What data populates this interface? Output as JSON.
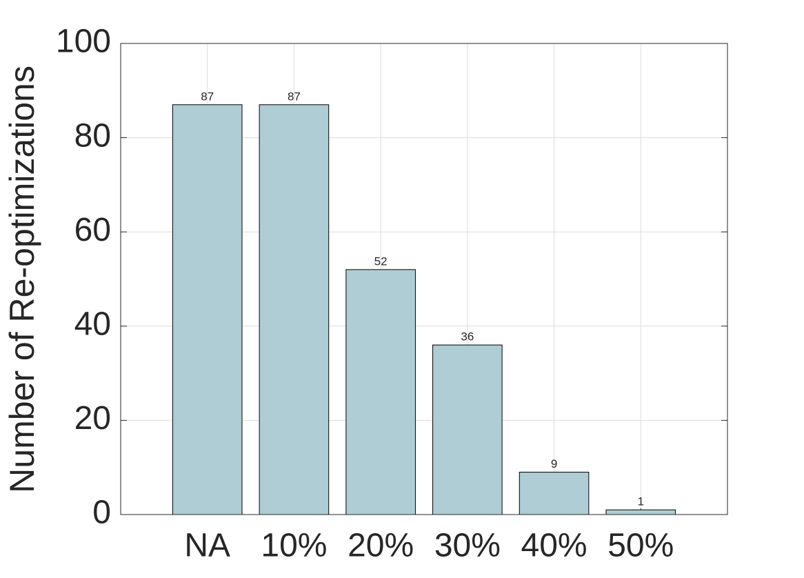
{
  "chart_data": {
    "type": "bar",
    "ylabel": "Number of Re-optimizations",
    "categories": [
      "NA",
      "10%",
      "20%",
      "30%",
      "40%",
      "50%"
    ],
    "values": [
      87,
      87,
      52,
      36,
      9,
      1
    ],
    "color": "#aecdd4",
    "ylim": [
      0,
      100
    ],
    "yticks": [
      0,
      20,
      40,
      60,
      80,
      100
    ],
    "grid": true
  }
}
